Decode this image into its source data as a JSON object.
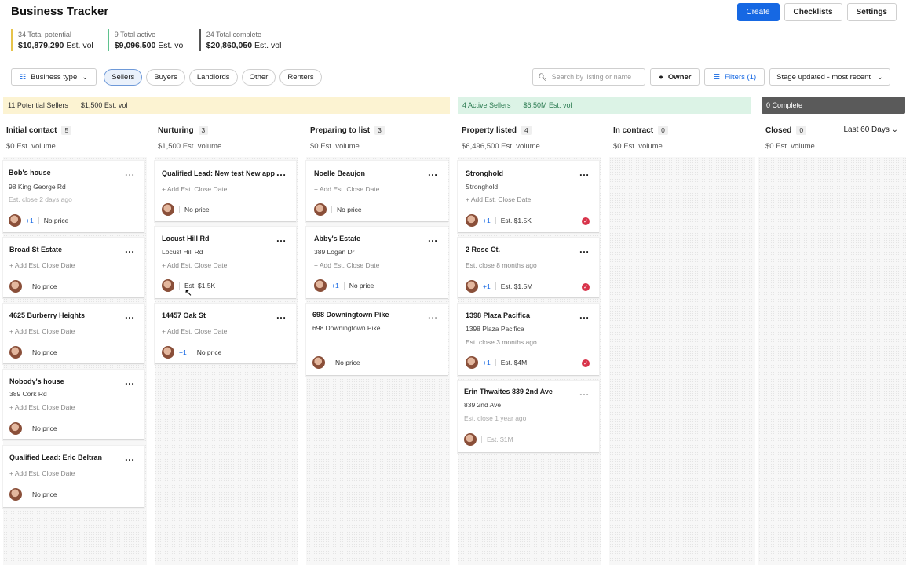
{
  "app": {
    "title": "Business Tracker"
  },
  "header": {
    "create": "Create",
    "checklists": "Checklists",
    "settings": "Settings"
  },
  "stats": [
    {
      "label": "34 Total potential",
      "amount": "$10,879,290",
      "suffix": "Est. vol",
      "color": "#e6c34a"
    },
    {
      "label": "9 Total active",
      "amount": "$9,096,500",
      "suffix": "Est. vol",
      "color": "#5fc28e"
    },
    {
      "label": "24 Total complete",
      "amount": "$20,860,050",
      "suffix": "Est. vol",
      "color": "#555555"
    }
  ],
  "filters": {
    "business_type": "Business type",
    "pills": [
      "Sellers",
      "Buyers",
      "Landlords",
      "Other",
      "Renters"
    ],
    "active_pill": "Sellers",
    "search_placeholder": "Search by listing or name",
    "owner": "Owner",
    "filters_label": "Filters (1)",
    "sort": "Stage updated - most recent"
  },
  "bands": {
    "potential": {
      "label": "11 Potential Sellers",
      "amount": "$1,500 Est. vol"
    },
    "active": {
      "label": "4 Active Sellers",
      "amount": "$6.50M Est. vol"
    },
    "complete": {
      "label": "0 Complete"
    }
  },
  "columns": [
    {
      "name": "Initial contact",
      "count": "5",
      "volume": "$0 Est. volume"
    },
    {
      "name": "Nurturing",
      "count": "3",
      "volume": "$1,500 Est. volume"
    },
    {
      "name": "Preparing to list",
      "count": "3",
      "volume": "$0 Est. volume"
    },
    {
      "name": "Property listed",
      "count": "4",
      "volume": "$6,496,500 Est. volume"
    },
    {
      "name": "In contract",
      "count": "0",
      "volume": "$0 Est. volume"
    },
    {
      "name": "Closed",
      "count": "0",
      "volume": "$0 Est. volume"
    }
  ],
  "range": "Last 60 Days",
  "cards": {
    "c1": [
      {
        "title": "Bob's house",
        "sub": "98 King George Rd",
        "sub2": "Est. close 2 days ago",
        "plus": "+1",
        "price": "No price"
      },
      {
        "title": "Broad St Estate",
        "add": "+ Add Est. Close Date",
        "price": "No price"
      },
      {
        "title": "4625 Burberry Heights",
        "add": "+ Add Est. Close Date",
        "price": "No price"
      },
      {
        "title": "Nobody's house",
        "sub": "389 Cork Rd",
        "add": "+ Add Est. Close Date",
        "price": "No price"
      },
      {
        "title": "Qualified Lead: Eric Beltran",
        "add": "+ Add Est. Close Date",
        "price": "No price"
      }
    ],
    "c2": [
      {
        "title": "Qualified Lead: New test New app",
        "add": "+ Add Est. Close Date",
        "price": "No price"
      },
      {
        "title": "Locust Hill Rd",
        "sub": "Locust Hill Rd",
        "add": "+ Add Est. Close Date",
        "price": "Est. $1.5K"
      },
      {
        "title": "14457 Oak St",
        "add": "+ Add Est. Close Date",
        "plus": "+1",
        "price": "No price"
      }
    ],
    "c3": [
      {
        "title": "Noelle Beaujon",
        "add": "+ Add Est. Close Date",
        "price": "No price"
      },
      {
        "title": "Abby's Estate",
        "sub": "389 Logan Dr",
        "add": "+ Add Est. Close Date",
        "plus": "+1",
        "price": "No price"
      },
      {
        "title": "698 Downingtown Pike",
        "sub": "698 Downingtown Pike",
        "price": "No price"
      }
    ],
    "c4": [
      {
        "title": "Stronghold",
        "sub": "Stronghold",
        "add": "+ Add Est. Close Date",
        "plus": "+1",
        "price": "Est. $1.5K"
      },
      {
        "title": "2 Rose Ct.",
        "sub2": "Est. close 8 months ago",
        "plus": "+1",
        "price": "Est. $1.5M"
      },
      {
        "title": "1398 Plaza Pacifica",
        "sub": "1398 Plaza Pacifica",
        "sub2": "Est. close 3 months ago",
        "plus": "+1",
        "price": "Est. $4M"
      },
      {
        "title": "Erin Thwaites 839 2nd Ave",
        "sub": "839 2nd Ave",
        "sub2": "Est. close 1 year ago",
        "price": "Est. $1M"
      }
    ]
  }
}
